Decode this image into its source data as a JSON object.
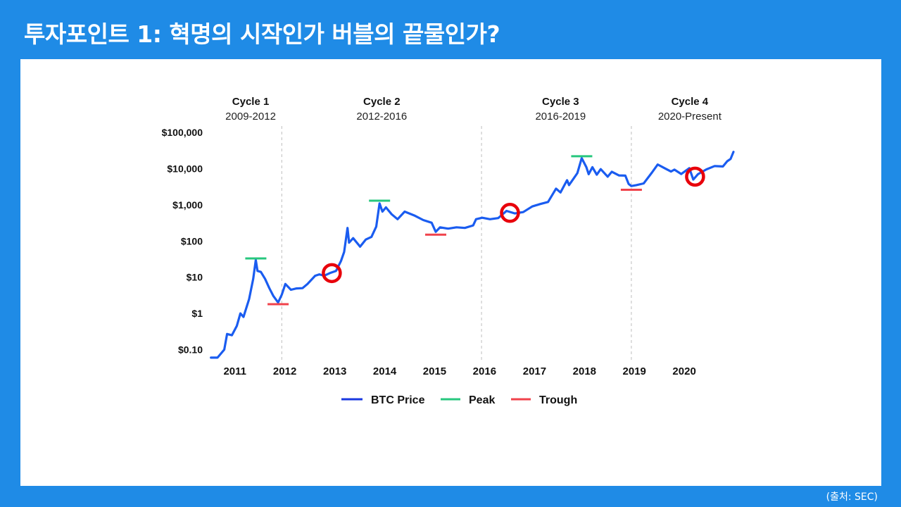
{
  "slide": {
    "title": "투자포인트 1: 혁명의 시작인가 버블의 끝물인가?",
    "source": "(출처: SEC)"
  },
  "colors": {
    "background": "#1f8be6",
    "price_line": "#1a5cf0",
    "peak": "#27c77e",
    "trough": "#f0424b",
    "marker_circle": "#e8000b",
    "cycle_divider": "#c8c8c8"
  },
  "chart_data": {
    "type": "line",
    "y_scale": "log",
    "ylim": [
      0.05,
      120000
    ],
    "xlim": [
      "2010-07-01",
      "2020-12-31"
    ],
    "y_ticks": [
      {
        "value": 0.1,
        "label": "$0.10"
      },
      {
        "value": 1,
        "label": "$1"
      },
      {
        "value": 10,
        "label": "$10"
      },
      {
        "value": 100,
        "label": "$100"
      },
      {
        "value": 1000,
        "label": "$1,000"
      },
      {
        "value": 10000,
        "label": "$10,000"
      },
      {
        "value": 100000,
        "label": "$100,000"
      }
    ],
    "x_ticks": [
      {
        "value": "2011-01-01",
        "label": "2011"
      },
      {
        "value": "2012-01-01",
        "label": "2012"
      },
      {
        "value": "2013-01-01",
        "label": "2013"
      },
      {
        "value": "2014-01-01",
        "label": "2014"
      },
      {
        "value": "2015-01-01",
        "label": "2015"
      },
      {
        "value": "2016-01-01",
        "label": "2016"
      },
      {
        "value": "2017-01-01",
        "label": "2017"
      },
      {
        "value": "2018-01-01",
        "label": "2018"
      },
      {
        "value": "2019-01-01",
        "label": "2019"
      },
      {
        "value": "2020-01-01",
        "label": "2020"
      }
    ],
    "cycles": [
      {
        "name": "Cycle 1",
        "period": "2009-2012",
        "center": "2011-05-01",
        "end": "2011-12-15"
      },
      {
        "name": "Cycle 2",
        "period": "2012-2016",
        "center": "2013-12-15",
        "end": "2015-12-15"
      },
      {
        "name": "Cycle 3",
        "period": "2016-2019",
        "center": "2017-07-15",
        "end": "2018-12-15"
      },
      {
        "name": "Cycle 4",
        "period": "2020-Present",
        "center": "2020-02-15",
        "end": null
      }
    ],
    "series": [
      {
        "name": "BTC Price",
        "points": [
          [
            "2010-07-15",
            0.06
          ],
          [
            "2010-09-01",
            0.06
          ],
          [
            "2010-10-20",
            0.1
          ],
          [
            "2010-11-10",
            0.27
          ],
          [
            "2010-12-15",
            0.25
          ],
          [
            "2011-01-20",
            0.45
          ],
          [
            "2011-02-15",
            1.0
          ],
          [
            "2011-03-10",
            0.8
          ],
          [
            "2011-04-20",
            2.5
          ],
          [
            "2011-05-20",
            9
          ],
          [
            "2011-06-08",
            30
          ],
          [
            "2011-06-20",
            15
          ],
          [
            "2011-07-15",
            14
          ],
          [
            "2011-08-15",
            9
          ],
          [
            "2011-09-15",
            5
          ],
          [
            "2011-10-15",
            3
          ],
          [
            "2011-11-18",
            2.0
          ],
          [
            "2011-12-15",
            3.3
          ],
          [
            "2012-01-10",
            6.5
          ],
          [
            "2012-02-20",
            4.5
          ],
          [
            "2012-04-01",
            4.9
          ],
          [
            "2012-05-15",
            5.0
          ],
          [
            "2012-06-20",
            6.5
          ],
          [
            "2012-08-15",
            11
          ],
          [
            "2012-09-15",
            12
          ],
          [
            "2012-10-20",
            11
          ],
          [
            "2012-12-01",
            13
          ],
          [
            "2013-01-15",
            15
          ],
          [
            "2013-02-20",
            28
          ],
          [
            "2013-03-15",
            50
          ],
          [
            "2013-04-09",
            230
          ],
          [
            "2013-04-20",
            90
          ],
          [
            "2013-05-20",
            120
          ],
          [
            "2013-07-10",
            70
          ],
          [
            "2013-08-20",
            110
          ],
          [
            "2013-10-01",
            130
          ],
          [
            "2013-11-05",
            250
          ],
          [
            "2013-11-29",
            1100
          ],
          [
            "2013-12-20",
            650
          ],
          [
            "2014-01-15",
            850
          ],
          [
            "2014-02-25",
            550
          ],
          [
            "2014-04-10",
            400
          ],
          [
            "2014-06-01",
            650
          ],
          [
            "2014-08-15",
            500
          ],
          [
            "2014-10-15",
            380
          ],
          [
            "2014-12-15",
            320
          ],
          [
            "2015-01-14",
            180
          ],
          [
            "2015-02-15",
            240
          ],
          [
            "2015-04-15",
            220
          ],
          [
            "2015-06-15",
            240
          ],
          [
            "2015-08-15",
            230
          ],
          [
            "2015-10-15",
            270
          ],
          [
            "2015-11-05",
            400
          ],
          [
            "2015-12-20",
            440
          ],
          [
            "2016-02-15",
            400
          ],
          [
            "2016-04-15",
            430
          ],
          [
            "2016-06-15",
            680
          ],
          [
            "2016-08-15",
            580
          ],
          [
            "2016-10-15",
            630
          ],
          [
            "2016-12-20",
            900
          ],
          [
            "2017-02-15",
            1050
          ],
          [
            "2017-04-15",
            1200
          ],
          [
            "2017-06-12",
            2800
          ],
          [
            "2017-07-15",
            2200
          ],
          [
            "2017-09-01",
            4800
          ],
          [
            "2017-09-15",
            3500
          ],
          [
            "2017-11-15",
            7500
          ],
          [
            "2017-12-17",
            19500
          ],
          [
            "2018-01-20",
            11000
          ],
          [
            "2018-02-06",
            7000
          ],
          [
            "2018-03-05",
            11000
          ],
          [
            "2018-04-06",
            6800
          ],
          [
            "2018-05-05",
            9700
          ],
          [
            "2018-06-25",
            6000
          ],
          [
            "2018-07-25",
            8200
          ],
          [
            "2018-09-15",
            6500
          ],
          [
            "2018-11-01",
            6400
          ],
          [
            "2018-11-25",
            3800
          ],
          [
            "2018-12-15",
            3300
          ],
          [
            "2019-01-20",
            3500
          ],
          [
            "2019-03-15",
            3900
          ],
          [
            "2019-05-15",
            7800
          ],
          [
            "2019-06-26",
            13000
          ],
          [
            "2019-08-15",
            10300
          ],
          [
            "2019-10-01",
            8300
          ],
          [
            "2019-10-26",
            9400
          ],
          [
            "2019-12-15",
            7100
          ],
          [
            "2020-02-12",
            10300
          ],
          [
            "2020-03-12",
            5000
          ],
          [
            "2020-04-15",
            7000
          ],
          [
            "2020-06-15",
            9500
          ],
          [
            "2020-08-15",
            11800
          ],
          [
            "2020-10-15",
            11500
          ],
          [
            "2020-11-15",
            16000
          ],
          [
            "2020-12-10",
            18500
          ],
          [
            "2020-12-31",
            29000
          ]
        ]
      }
    ],
    "peaks": [
      {
        "date": "2011-06-08",
        "value": 33
      },
      {
        "date": "2013-11-29",
        "value": 1300
      },
      {
        "date": "2017-12-17",
        "value": 22000
      }
    ],
    "troughs": [
      {
        "date": "2011-11-18",
        "value": 1.8
      },
      {
        "date": "2015-01-14",
        "value": 150
      },
      {
        "date": "2018-12-15",
        "value": 2600
      }
    ],
    "highlighted_points": [
      {
        "date": "2012-12-15",
        "value": 13
      },
      {
        "date": "2016-07-10",
        "value": 600
      },
      {
        "date": "2020-03-25",
        "value": 6000
      }
    ],
    "legend": [
      {
        "label": "BTC Price",
        "color": "#1a38e0"
      },
      {
        "label": "Peak",
        "color": "#27c77e"
      },
      {
        "label": "Trough",
        "color": "#f0424b"
      }
    ],
    "legend_position": "bottom-center",
    "grid": false
  }
}
